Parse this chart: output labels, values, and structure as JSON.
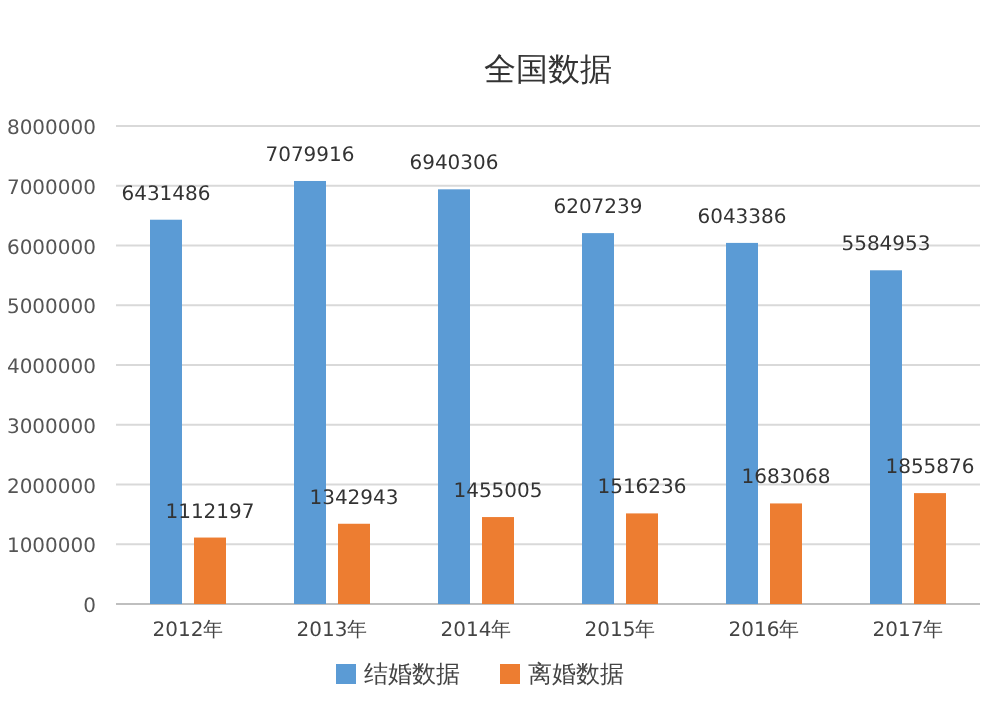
{
  "chart_data": {
    "type": "bar",
    "title": "全国数据",
    "categories": [
      "2012年",
      "2013年",
      "2014年",
      "2015年",
      "2016年",
      "2017年"
    ],
    "series": [
      {
        "name": "结婚数据",
        "color": "#5b9bd5",
        "values": [
          6431486,
          7079916,
          6940306,
          6207239,
          6043386,
          5584953
        ]
      },
      {
        "name": "离婚数据",
        "color": "#ed7d31",
        "values": [
          1112197,
          1342943,
          1455005,
          1516236,
          1683068,
          1855876
        ]
      }
    ],
    "ylim": [
      0,
      8000000
    ],
    "yticks": [
      0,
      1000000,
      2000000,
      3000000,
      4000000,
      5000000,
      6000000,
      7000000,
      8000000
    ],
    "grid": "y",
    "legend": "bottom",
    "data_labels": true
  }
}
